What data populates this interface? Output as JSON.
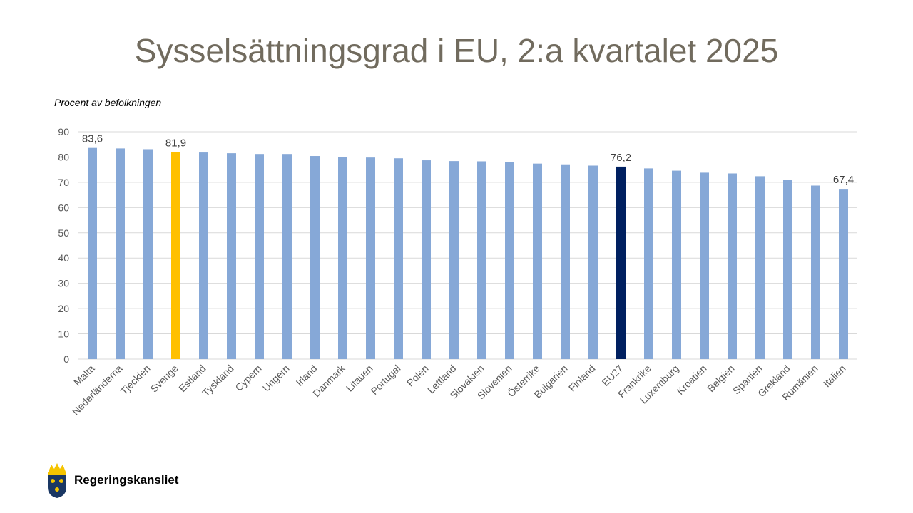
{
  "chart_data": {
    "type": "bar",
    "title": "Sysselsättningsgrad i EU, 2:a kvartalet 2025",
    "ylabel": "Procent av befolkningen",
    "xlabel": "",
    "ylim": [
      0,
      90
    ],
    "yticks": [
      0,
      10,
      20,
      30,
      40,
      50,
      60,
      70,
      80,
      90
    ],
    "grid": true,
    "categories": [
      "Malta",
      "Nederländerna",
      "Tjeckien",
      "Sverige",
      "Estland",
      "Tyskland",
      "Cypern",
      "Ungern",
      "Irland",
      "Danmark",
      "Litauen",
      "Portugal",
      "Polen",
      "Lettland",
      "Slovakien",
      "Slovenien",
      "Österrike",
      "Bulgarien",
      "Finland",
      "EU27",
      "Frankrike",
      "Luxemburg",
      "Kroatien",
      "Belgien",
      "Spanien",
      "Grekland",
      "Rumänien",
      "Italien"
    ],
    "values": [
      83.6,
      83.4,
      83.1,
      81.9,
      81.8,
      81.5,
      81.2,
      81.2,
      80.4,
      80.1,
      79.8,
      79.5,
      78.7,
      78.4,
      78.3,
      78.0,
      77.4,
      77.1,
      76.6,
      76.2,
      75.5,
      74.6,
      73.8,
      73.5,
      72.4,
      71.0,
      68.7,
      67.4
    ],
    "data_labels": {
      "Malta": "83,6",
      "Sverige": "81,9",
      "EU27": "76,2",
      "Italien": "67,4"
    },
    "colors": {
      "default": "#86a8d7",
      "Sverige": "#ffc000",
      "EU27": "#002060"
    }
  },
  "footer": {
    "logo_text": "Regeringskansliet"
  }
}
